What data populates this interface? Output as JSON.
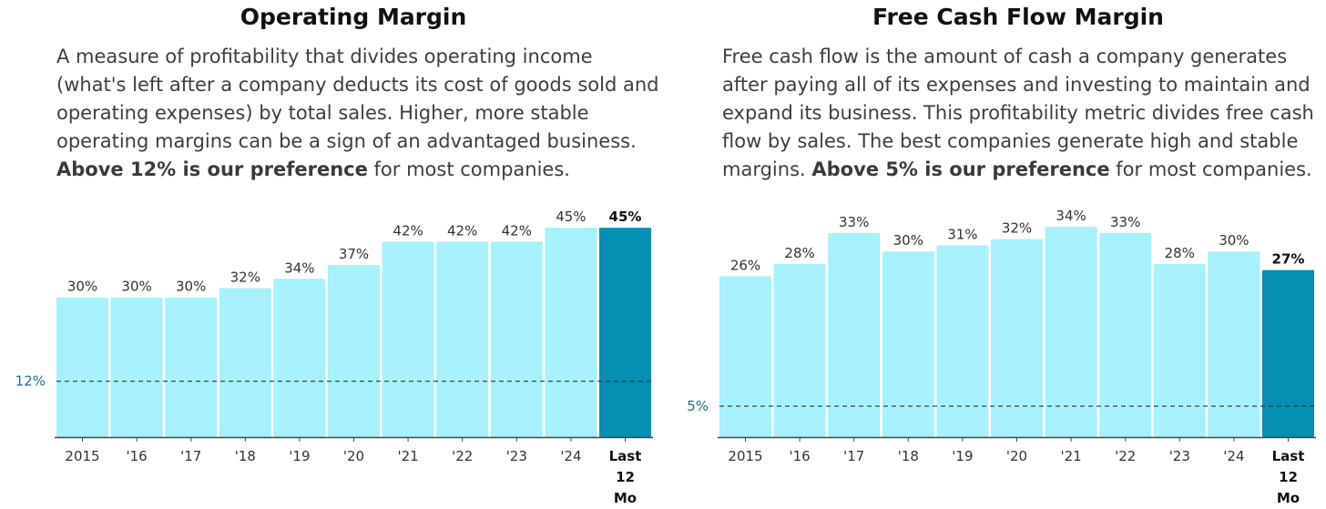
{
  "colors": {
    "bar": "#a6f1fb",
    "bar_highlight": "#058fb3",
    "reference_line": "#333333",
    "reference_label": "#1b6f8a",
    "axis": "#444444"
  },
  "panels": [
    {
      "title": "Operating Margin",
      "description": {
        "text": "A measure of profitability that divides operating income (what's left after a company deducts its cost of goods sold and operating expenses) by total sales. Higher, more stable operating margins can be a sign of an advantaged business. ",
        "bold": "Above 12% is our preference",
        "tail": " for most companies."
      }
    },
    {
      "title": "Free Cash Flow Margin",
      "description": {
        "text": "Free cash flow is the amount of cash a company generates after paying all of its expenses and investing to maintain and expand its business. This profitability metric divides free cash flow by sales. The best companies generate high and stable margins. ",
        "bold": "Above 5% is our preference",
        "tail": " for most companies."
      }
    }
  ],
  "chart_data": [
    {
      "type": "bar",
      "title": "Operating Margin",
      "categories": [
        "2015",
        "'16",
        "'17",
        "'18",
        "'19",
        "'20",
        "'21",
        "'22",
        "'23",
        "'24",
        "Last 12 Mo"
      ],
      "values": [
        30,
        30,
        30,
        32,
        34,
        37,
        42,
        42,
        42,
        45,
        45
      ],
      "data_labels": [
        "30%",
        "30%",
        "30%",
        "32%",
        "34%",
        "37%",
        "42%",
        "42%",
        "42%",
        "45%",
        "45%"
      ],
      "highlight_index": 10,
      "reference_line": {
        "value": 12,
        "label": "12%"
      },
      "ylim": [
        0,
        46
      ],
      "xlabel": "",
      "ylabel": "",
      "grid": false
    },
    {
      "type": "bar",
      "title": "Free Cash Flow Margin",
      "categories": [
        "2015",
        "'16",
        "'17",
        "'18",
        "'19",
        "'20",
        "'21",
        "'22",
        "'23",
        "'24",
        "Last 12 Mo"
      ],
      "values": [
        26,
        28,
        33,
        30,
        31,
        32,
        34,
        33,
        28,
        30,
        27
      ],
      "data_labels": [
        "26%",
        "28%",
        "33%",
        "30%",
        "31%",
        "32%",
        "34%",
        "33%",
        "28%",
        "30%",
        "27%"
      ],
      "highlight_index": 10,
      "reference_line": {
        "value": 5,
        "label": "5%"
      },
      "ylim": [
        0,
        34.6
      ],
      "xlabel": "",
      "ylabel": "",
      "grid": false
    }
  ]
}
